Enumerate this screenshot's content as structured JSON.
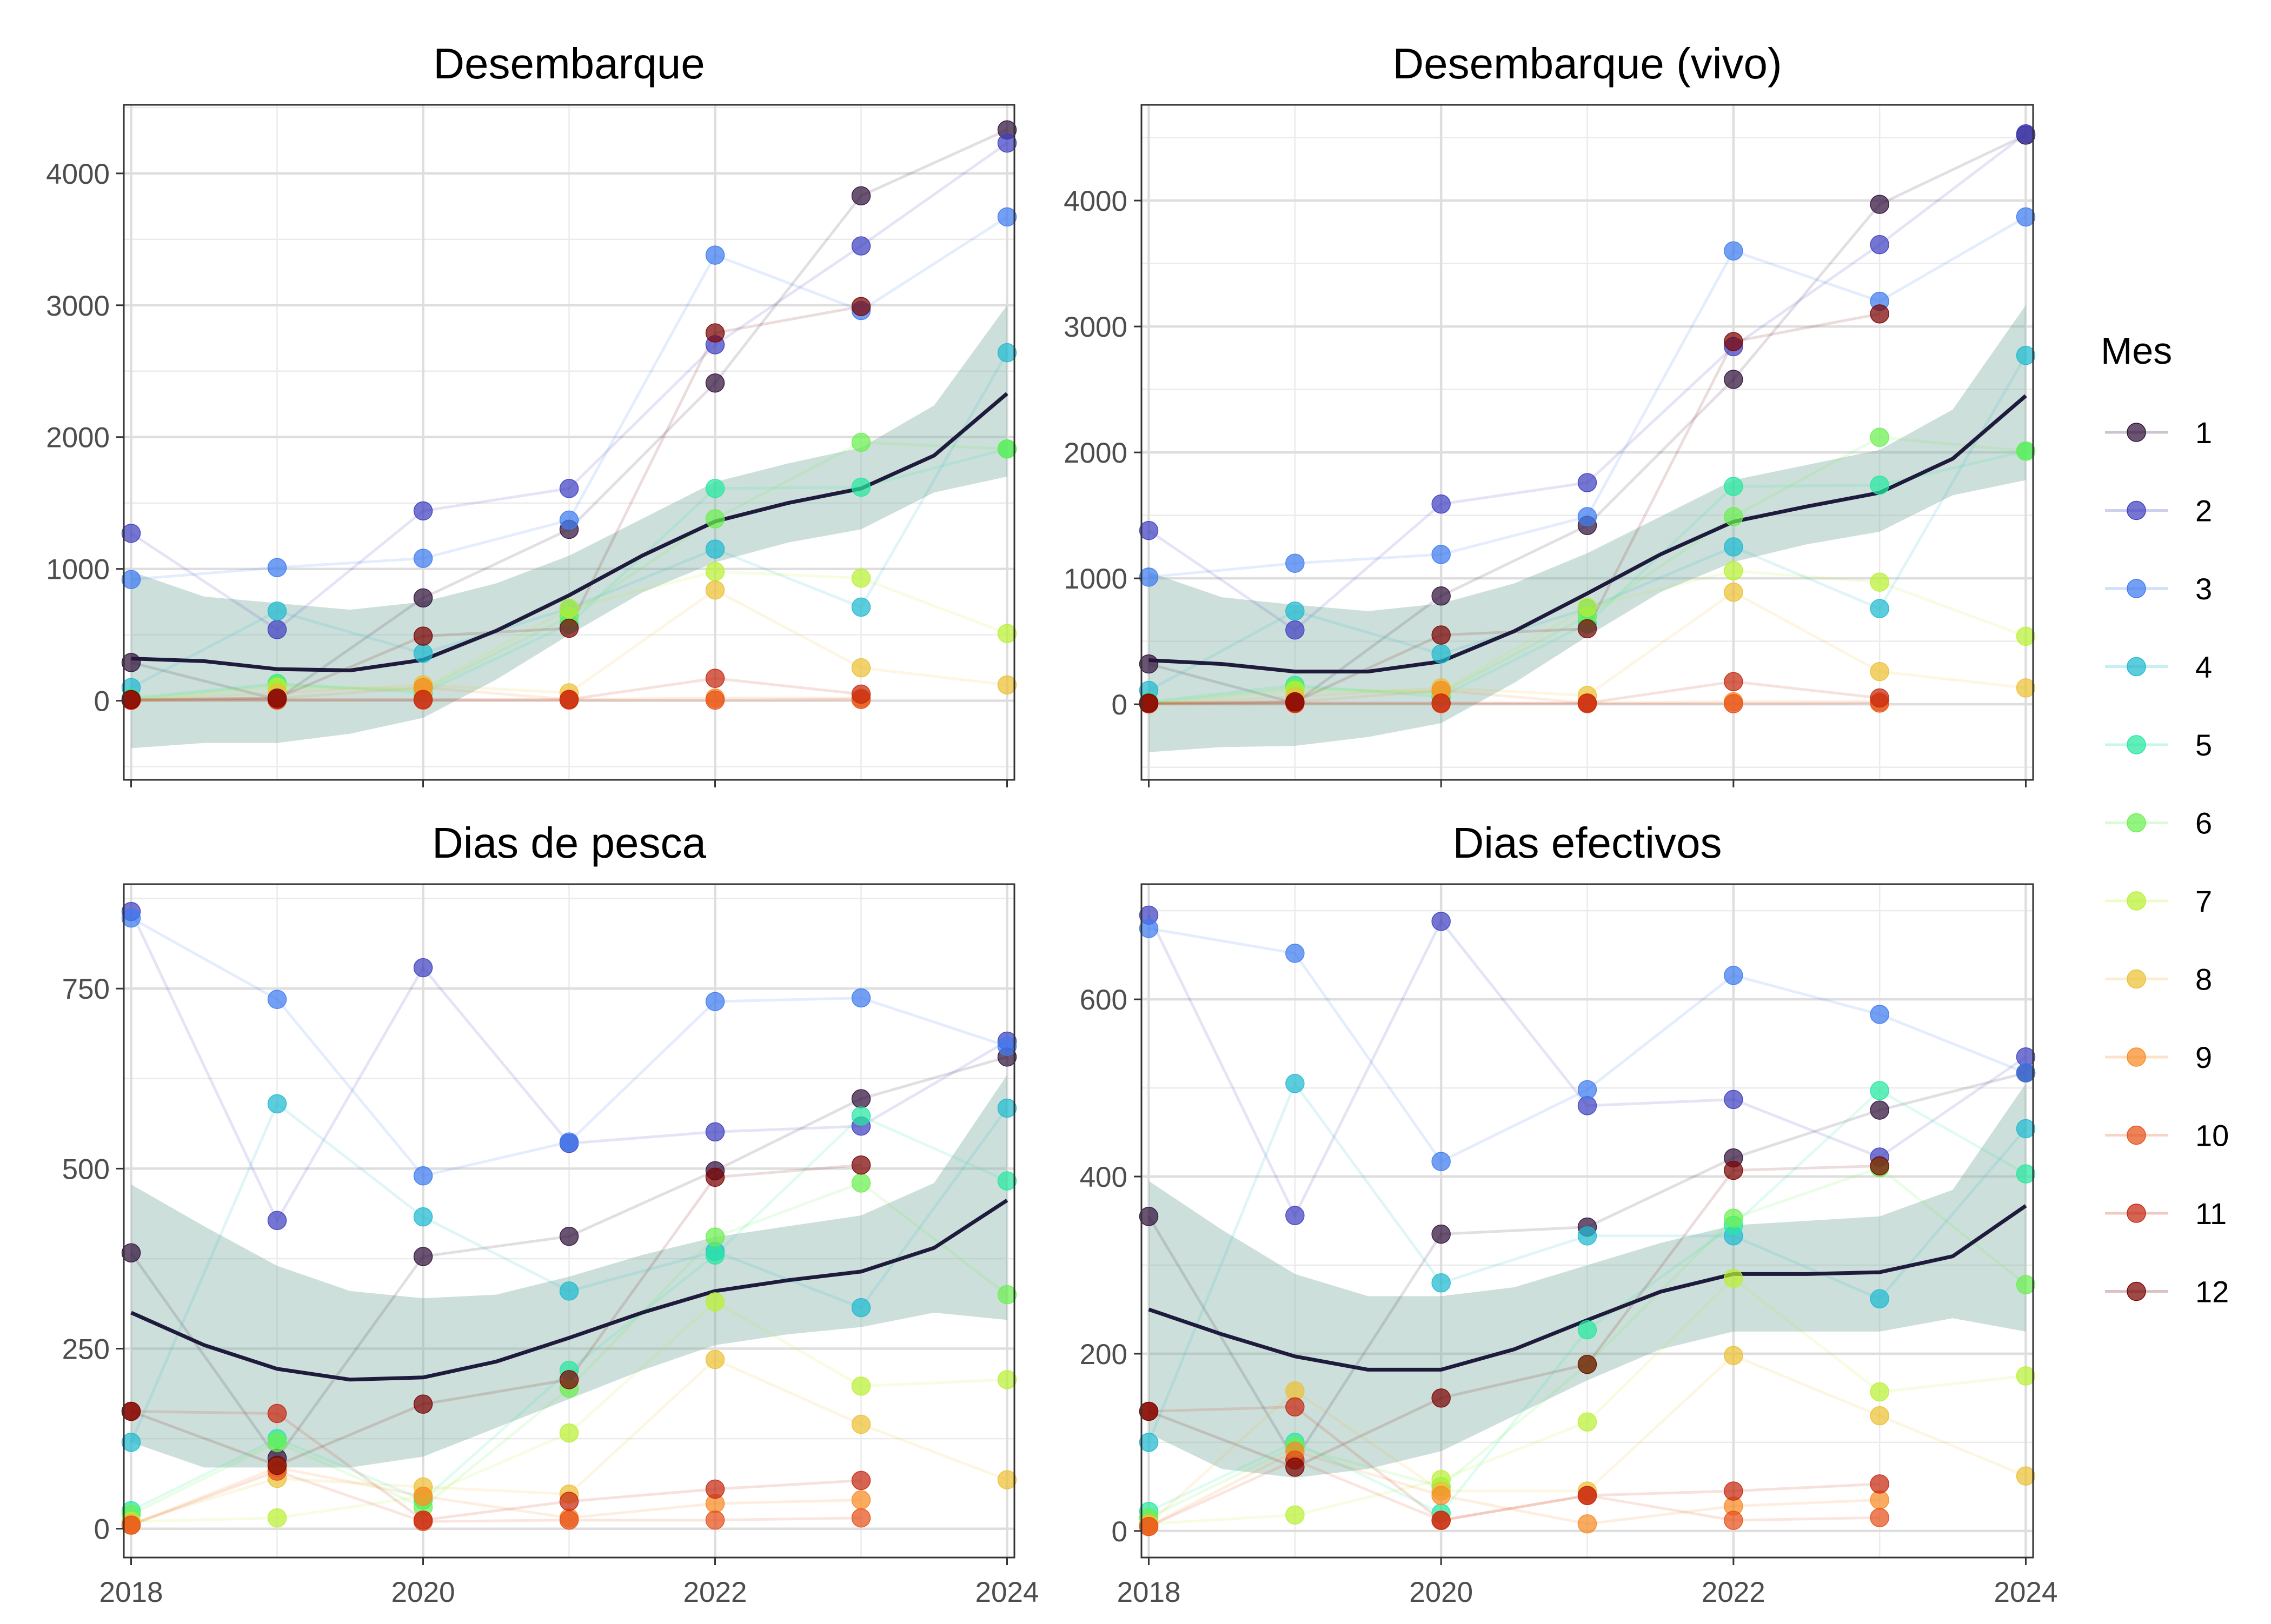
{
  "legend": {
    "title": "Mes",
    "items": [
      {
        "label": "1",
        "color": "#30123B"
      },
      {
        "label": "2",
        "color": "#4040C0"
      },
      {
        "label": "3",
        "color": "#3E7CF0"
      },
      {
        "label": "4",
        "color": "#1FBAD0"
      },
      {
        "label": "5",
        "color": "#25E8A0"
      },
      {
        "label": "6",
        "color": "#6BF050"
      },
      {
        "label": "7",
        "color": "#BAF034"
      },
      {
        "label": "8",
        "color": "#EBC034"
      },
      {
        "label": "9",
        "color": "#F88A25"
      },
      {
        "label": "10",
        "color": "#E6501A"
      },
      {
        "label": "11",
        "color": "#C62810"
      },
      {
        "label": "12",
        "color": "#7A0403"
      }
    ]
  },
  "smooth_color": "#1E1B3C",
  "ribbon_color": "#7FAEA3",
  "chart_data": [
    {
      "type": "scatter",
      "title": "Desembarque",
      "x_ticks": [
        "2018",
        "2020",
        "2022",
        "2024"
      ],
      "xlim": [
        2017.95,
        2024.05
      ],
      "ylim": [
        -600,
        4520
      ],
      "y_ticks": [
        0,
        1000,
        2000,
        3000,
        4000
      ],
      "y_tick_labels": [
        "0",
        "1000",
        "2000",
        "3000",
        "4000"
      ],
      "x": [
        2018,
        2019,
        2020,
        2021,
        2022,
        2023,
        2024
      ],
      "series": [
        {
          "name": "1",
          "values": [
            290,
            10,
            780,
            1300,
            2410,
            3830,
            4330
          ]
        },
        {
          "name": "2",
          "values": [
            1270,
            540,
            1440,
            1610,
            2700,
            3450,
            4230
          ]
        },
        {
          "name": "3",
          "values": [
            920,
            1010,
            1080,
            1370,
            3380,
            2960,
            3670
          ]
        },
        {
          "name": "4",
          "values": [
            100,
            680,
            360,
            700,
            1150,
            710,
            2640
          ]
        },
        {
          "name": "5",
          "values": [
            20,
            130,
            60,
            580,
            1610,
            1620,
            1910
          ]
        },
        {
          "name": "6",
          "values": [
            10,
            120,
            80,
            640,
            1380,
            1960,
            1910
          ]
        },
        {
          "name": "7",
          "values": [
            5,
            100,
            90,
            700,
            980,
            930,
            510
          ]
        },
        {
          "name": "8",
          "values": [
            5,
            60,
            120,
            60,
            840,
            250,
            120
          ]
        },
        {
          "name": "9",
          "values": [
            3,
            20,
            100,
            10,
            20,
            20,
            null
          ]
        },
        {
          "name": "10",
          "values": [
            3,
            5,
            5,
            5,
            5,
            10,
            null
          ]
        },
        {
          "name": "11",
          "values": [
            5,
            10,
            10,
            10,
            170,
            50,
            null
          ]
        },
        {
          "name": "12",
          "values": [
            10,
            20,
            490,
            550,
            2790,
            2990,
            null
          ]
        }
      ],
      "smooth": {
        "x": [
          2018,
          2018.5,
          2019,
          2019.5,
          2020,
          2020.5,
          2021,
          2021.5,
          2022,
          2022.5,
          2023,
          2023.5,
          2024
        ],
        "y": [
          320,
          300,
          240,
          230,
          310,
          530,
          800,
          1100,
          1360,
          1500,
          1610,
          1860,
          2330
        ],
        "lower": [
          -360,
          -320,
          -320,
          -250,
          -130,
          160,
          500,
          820,
          1050,
          1200,
          1300,
          1580,
          1700
        ],
        "upper": [
          980,
          790,
          740,
          690,
          750,
          890,
          1100,
          1380,
          1660,
          1800,
          1920,
          2240,
          3000
        ]
      }
    },
    {
      "type": "scatter",
      "title": "Desembarque (vivo)",
      "x_ticks": [
        "2018",
        "2020",
        "2022",
        "2024"
      ],
      "xlim": [
        2017.95,
        2024.05
      ],
      "ylim": [
        -600,
        4760
      ],
      "y_ticks": [
        0,
        1000,
        2000,
        3000,
        4000
      ],
      "y_tick_labels": [
        "0",
        "1000",
        "2000",
        "3000",
        "4000"
      ],
      "x": [
        2018,
        2019,
        2020,
        2021,
        2022,
        2023,
        2024
      ],
      "series": [
        {
          "name": "1",
          "values": [
            320,
            10,
            860,
            1420,
            2580,
            3970,
            4520
          ]
        },
        {
          "name": "2",
          "values": [
            1380,
            590,
            1590,
            1760,
            2840,
            3650,
            4530
          ]
        },
        {
          "name": "3",
          "values": [
            1010,
            1120,
            1190,
            1490,
            3600,
            3200,
            3870
          ]
        },
        {
          "name": "4",
          "values": [
            110,
            740,
            400,
            760,
            1250,
            760,
            2770
          ]
        },
        {
          "name": "5",
          "values": [
            20,
            150,
            60,
            640,
            1730,
            1740,
            2010
          ]
        },
        {
          "name": "6",
          "values": [
            10,
            130,
            90,
            700,
            1490,
            2120,
            2010
          ]
        },
        {
          "name": "7",
          "values": [
            5,
            110,
            100,
            770,
            1060,
            970,
            540
          ]
        },
        {
          "name": "8",
          "values": [
            5,
            60,
            130,
            70,
            890,
            260,
            130
          ]
        },
        {
          "name": "9",
          "values": [
            3,
            20,
            110,
            10,
            20,
            20,
            null
          ]
        },
        {
          "name": "10",
          "values": [
            3,
            5,
            5,
            5,
            5,
            10,
            null
          ]
        },
        {
          "name": "11",
          "values": [
            5,
            10,
            10,
            10,
            180,
            50,
            null
          ]
        },
        {
          "name": "12",
          "values": [
            10,
            20,
            550,
            600,
            2880,
            3100,
            null
          ]
        }
      ],
      "smooth": {
        "x": [
          2018,
          2018.5,
          2019,
          2019.5,
          2020,
          2020.5,
          2021,
          2021.5,
          2022,
          2022.5,
          2023,
          2023.5,
          2024
        ],
        "y": [
          350,
          320,
          260,
          260,
          340,
          580,
          880,
          1190,
          1450,
          1570,
          1680,
          1950,
          2450
        ],
        "lower": [
          -380,
          -340,
          -330,
          -260,
          -150,
          170,
          540,
          890,
          1130,
          1270,
          1370,
          1660,
          1780
        ],
        "upper": [
          1050,
          850,
          790,
          740,
          800,
          960,
          1200,
          1490,
          1780,
          1900,
          2020,
          2340,
          3170
        ]
      }
    },
    {
      "type": "scatter",
      "title": "Dias de pesca",
      "x_ticks": [
        "2018",
        "2020",
        "2022",
        "2024"
      ],
      "xlim": [
        2017.95,
        2024.05
      ],
      "ylim": [
        -40,
        895
      ],
      "y_ticks": [
        0,
        250,
        500,
        750
      ],
      "y_tick_labels": [
        "0",
        "250",
        "500",
        "750"
      ],
      "x": [
        2018,
        2019,
        2020,
        2021,
        2022,
        2023,
        2024
      ],
      "series": [
        {
          "name": "1",
          "values": [
            383,
            98,
            378,
            406,
            497,
            597,
            655
          ]
        },
        {
          "name": "2",
          "values": [
            857,
            428,
            779,
            535,
            551,
            559,
            677
          ]
        },
        {
          "name": "3",
          "values": [
            848,
            735,
            490,
            537,
            732,
            737,
            670
          ]
        },
        {
          "name": "4",
          "values": [
            120,
            590,
            433,
            330,
            385,
            307,
            584
          ]
        },
        {
          "name": "5",
          "values": [
            25,
            125,
            40,
            220,
            380,
            573,
            483
          ]
        },
        {
          "name": "6",
          "values": [
            20,
            120,
            30,
            195,
            405,
            480,
            325
          ]
        },
        {
          "name": "7",
          "values": [
            10,
            15,
            45,
            133,
            315,
            198,
            207
          ]
        },
        {
          "name": "8",
          "values": [
            8,
            70,
            58,
            48,
            235,
            145,
            68
          ]
        },
        {
          "name": "9",
          "values": [
            5,
            85,
            45,
            15,
            35,
            40,
            null
          ]
        },
        {
          "name": "10",
          "values": [
            5,
            80,
            10,
            12,
            12,
            15,
            null
          ]
        },
        {
          "name": "11",
          "values": [
            163,
            160,
            12,
            38,
            55,
            67,
            null
          ]
        },
        {
          "name": "12",
          "values": [
            163,
            88,
            173,
            207,
            488,
            505,
            null
          ]
        }
      ],
      "smooth": {
        "x": [
          2018,
          2018.5,
          2019,
          2019.5,
          2020,
          2020.5,
          2021,
          2021.5,
          2022,
          2022.5,
          2023,
          2023.5,
          2024
        ],
        "y": [
          300,
          255,
          222,
          207,
          210,
          232,
          265,
          300,
          330,
          345,
          357,
          390,
          456
        ],
        "lower": [
          120,
          85,
          85,
          85,
          100,
          140,
          180,
          220,
          255,
          270,
          280,
          300,
          290
        ],
        "upper": [
          478,
          420,
          365,
          330,
          320,
          325,
          350,
          380,
          405,
          420,
          435,
          480,
          630
        ]
      }
    },
    {
      "type": "scatter",
      "title": "Dias efectivos",
      "x_ticks": [
        "2018",
        "2020",
        "2022",
        "2024"
      ],
      "xlim": [
        2017.95,
        2024.05
      ],
      "ylim": [
        -30,
        730
      ],
      "y_ticks": [
        0,
        200,
        400,
        600
      ],
      "y_tick_labels": [
        "0",
        "200",
        "400",
        "600"
      ],
      "x": [
        2018,
        2019,
        2020,
        2021,
        2022,
        2023,
        2024
      ],
      "series": [
        {
          "name": "1",
          "values": [
            355,
            80,
            335,
            343,
            421,
            475,
            517
          ]
        },
        {
          "name": "2",
          "values": [
            695,
            356,
            688,
            480,
            487,
            422,
            535
          ]
        },
        {
          "name": "3",
          "values": [
            680,
            652,
            417,
            498,
            627,
            583,
            517
          ]
        },
        {
          "name": "4",
          "values": [
            100,
            505,
            280,
            333,
            333,
            262,
            454
          ]
        },
        {
          "name": "5",
          "values": [
            22,
            100,
            20,
            227,
            345,
            497,
            403
          ]
        },
        {
          "name": "6",
          "values": [
            15,
            95,
            50,
            188,
            353,
            410,
            278
          ]
        },
        {
          "name": "7",
          "values": [
            8,
            18,
            58,
            123,
            285,
            157,
            175
          ]
        },
        {
          "name": "8",
          "values": [
            8,
            158,
            45,
            45,
            198,
            130,
            62
          ]
        },
        {
          "name": "9",
          "values": [
            5,
            90,
            40,
            8,
            28,
            35,
            null
          ]
        },
        {
          "name": "10",
          "values": [
            5,
            80,
            12,
            40,
            12,
            15,
            null
          ]
        },
        {
          "name": "11",
          "values": [
            135,
            140,
            12,
            40,
            45,
            53,
            null
          ]
        },
        {
          "name": "12",
          "values": [
            135,
            72,
            150,
            188,
            407,
            412,
            null
          ]
        }
      ],
      "smooth": {
        "x": [
          2018,
          2018.5,
          2019,
          2019.5,
          2020,
          2020.5,
          2021,
          2021.5,
          2022,
          2022.5,
          2023,
          2023.5,
          2024
        ],
        "y": [
          250,
          222,
          197,
          182,
          182,
          205,
          238,
          270,
          290,
          290,
          292,
          310,
          367
        ],
        "lower": [
          110,
          70,
          60,
          70,
          90,
          130,
          170,
          205,
          225,
          225,
          225,
          240,
          225
        ],
        "upper": [
          395,
          340,
          290,
          265,
          265,
          275,
          300,
          325,
          345,
          350,
          355,
          385,
          505
        ]
      }
    }
  ]
}
